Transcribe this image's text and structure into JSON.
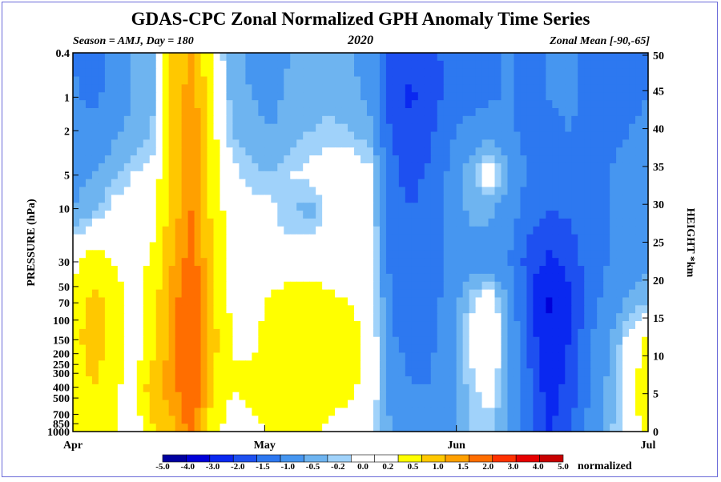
{
  "chart_data": {
    "type": "heatmap",
    "title": "GDAS-CPC Zonal Normalized GPH Anomaly Time Series",
    "subtitle_left": "Season = AMJ, Day = 180",
    "subtitle_center": "2020",
    "subtitle_right": "Zonal Mean [-90,-65]",
    "ylabel": "PRESSURE (hPa)",
    "y2label": "HEIGHT *km",
    "x_ticks": [
      "Apr",
      "May",
      "Jun",
      "Jul"
    ],
    "y_ticks": [
      "0.4",
      "1",
      "2",
      "5",
      "10",
      "30",
      "50",
      "70",
      "100",
      "150",
      "200",
      "250",
      "300",
      "400",
      "500",
      "700",
      "850",
      "1000"
    ],
    "y2_ticks": [
      "50",
      "45",
      "40",
      "35",
      "30",
      "25",
      "20",
      "15",
      "10",
      "5",
      "0"
    ],
    "colorbar_levels": [
      "-5.0",
      "-4.0",
      "-3.0",
      "-2.0",
      "-1.5",
      "-1.0",
      "-0.5",
      "-0.2",
      "0.0",
      "0.2",
      "0.5",
      "1.0",
      "1.5",
      "2.0",
      "3.0",
      "4.0",
      "5.0"
    ],
    "colorbar_colors": [
      "#0000a0",
      "#0000d8",
      "#0a28f0",
      "#1e50f0",
      "#2d78f0",
      "#4696f0",
      "#6eb4f0",
      "#a0d2fa",
      "#ffffff",
      "#ffffff",
      "#ffff00",
      "#ffc800",
      "#ffa000",
      "#ff6e00",
      "#ff3200",
      "#e60000",
      "#c80000"
    ],
    "colorbar_label": "normalized",
    "x_range": [
      "Apr",
      "Jul"
    ],
    "y_range": [
      "1000",
      "0.4"
    ],
    "y_scale": "log",
    "anomaly_pattern": [
      {
        "pressure_hPa": "0.4",
        "values": [
          -1.0,
          -1.4,
          -0.8,
          -0.5,
          -0.3,
          1.0,
          1.6,
          0.5,
          -0.4,
          -0.6,
          -0.7,
          -0.5,
          -0.4,
          -0.4,
          -0.5,
          -0.6,
          -1.6,
          -1.9,
          -1.7,
          -1.3,
          -1.4,
          -1.2,
          -0.9,
          -1.3,
          -1.0,
          -0.9,
          -1.1,
          -1.3,
          -1.2,
          -1.0
        ]
      },
      {
        "pressure_hPa": "1",
        "values": [
          -0.9,
          -1.2,
          -0.7,
          -0.5,
          -0.3,
          1.1,
          1.8,
          0.6,
          -0.3,
          -0.5,
          -0.6,
          -0.4,
          -0.3,
          -0.3,
          -0.4,
          -0.6,
          -1.7,
          -2.1,
          -1.8,
          -1.3,
          -1.3,
          -1.1,
          -0.9,
          -1.2,
          -1.0,
          -0.9,
          -1.1,
          -1.2,
          -1.1,
          -1.0
        ]
      },
      {
        "pressure_hPa": "2",
        "values": [
          -0.7,
          -0.8,
          -0.6,
          -0.4,
          -0.2,
          1.1,
          1.9,
          0.7,
          -0.2,
          -0.4,
          -0.5,
          -0.3,
          -0.2,
          -0.1,
          -0.2,
          -0.4,
          -1.5,
          -1.9,
          -1.6,
          -1.1,
          -0.8,
          -0.6,
          -0.9,
          -1.2,
          -1.1,
          -1.0,
          -1.1,
          -1.1,
          -1.0,
          -0.9
        ]
      },
      {
        "pressure_hPa": "5",
        "values": [
          -0.6,
          -0.5,
          -0.3,
          0.0,
          0.1,
          1.2,
          2.0,
          0.8,
          0.1,
          -0.1,
          -0.2,
          0.0,
          0.1,
          0.2,
          0.3,
          0.1,
          -1.3,
          -1.7,
          -1.4,
          -0.9,
          -0.3,
          0.3,
          -0.5,
          -1.1,
          -1.2,
          -1.1,
          -1.1,
          -1.0,
          -0.9,
          -0.8
        ]
      },
      {
        "pressure_hPa": "10",
        "values": [
          -0.5,
          -0.3,
          0.1,
          0.3,
          0.2,
          1.2,
          2.0,
          0.9,
          0.2,
          0.1,
          0.1,
          -0.2,
          -0.3,
          0.1,
          0.3,
          0.2,
          -1.2,
          -1.5,
          -1.3,
          -0.9,
          -0.4,
          -0.4,
          -0.7,
          -1.3,
          -1.5,
          -1.4,
          -1.2,
          -1.0,
          -0.8,
          -0.7
        ]
      },
      {
        "pressure_hPa": "30",
        "values": [
          0.3,
          0.8,
          0.5,
          0.2,
          0.6,
          1.5,
          2.3,
          1.0,
          0.4,
          0.1,
          0.0,
          0.2,
          0.3,
          0.2,
          0.4,
          0.3,
          -1.1,
          -1.4,
          -1.2,
          -0.9,
          -0.7,
          -0.7,
          -1.0,
          -1.7,
          -2.1,
          -1.8,
          -1.3,
          -1.0,
          -0.8,
          -0.6
        ]
      },
      {
        "pressure_hPa": "70",
        "values": [
          0.6,
          1.2,
          0.8,
          0.3,
          0.7,
          1.7,
          2.8,
          1.1,
          0.4,
          0.3,
          0.6,
          0.9,
          0.8,
          0.6,
          0.5,
          0.4,
          -1.0,
          -1.3,
          -1.2,
          -0.8,
          -0.1,
          0.4,
          -0.6,
          -1.8,
          -3.1,
          -2.2,
          -1.2,
          -0.8,
          -0.4,
          -0.2
        ]
      },
      {
        "pressure_hPa": "150",
        "values": [
          0.8,
          1.3,
          0.9,
          0.2,
          0.7,
          1.8,
          3.0,
          1.2,
          0.5,
          0.4,
          0.7,
          1.0,
          1.0,
          0.7,
          0.6,
          0.4,
          -0.9,
          -1.2,
          -1.1,
          -0.7,
          0.0,
          0.6,
          -0.5,
          -1.6,
          -2.6,
          -2.0,
          -1.1,
          -0.6,
          0.1,
          0.6
        ]
      },
      {
        "pressure_hPa": "400",
        "values": [
          0.6,
          1.0,
          0.7,
          0.2,
          1.4,
          1.7,
          2.7,
          1.1,
          0.5,
          0.6,
          0.7,
          0.8,
          0.8,
          0.7,
          0.6,
          0.3,
          -0.6,
          -1.0,
          -1.0,
          -0.7,
          -0.1,
          0.2,
          -0.5,
          -1.4,
          -2.3,
          -1.8,
          -1.0,
          -0.4,
          0.3,
          0.9
        ]
      },
      {
        "pressure_hPa": "1000",
        "values": [
          0.5,
          0.8,
          0.6,
          0.1,
          0.9,
          1.4,
          2.2,
          0.7,
          0.3,
          0.4,
          0.5,
          0.6,
          0.6,
          0.4,
          0.3,
          0.1,
          -0.5,
          -0.9,
          -0.9,
          -0.6,
          -0.2,
          -0.1,
          -0.6,
          -1.4,
          -2.1,
          -1.6,
          -0.9,
          -0.3,
          0.2,
          0.7
        ]
      }
    ],
    "grid": false,
    "legend_position": "bottom"
  }
}
